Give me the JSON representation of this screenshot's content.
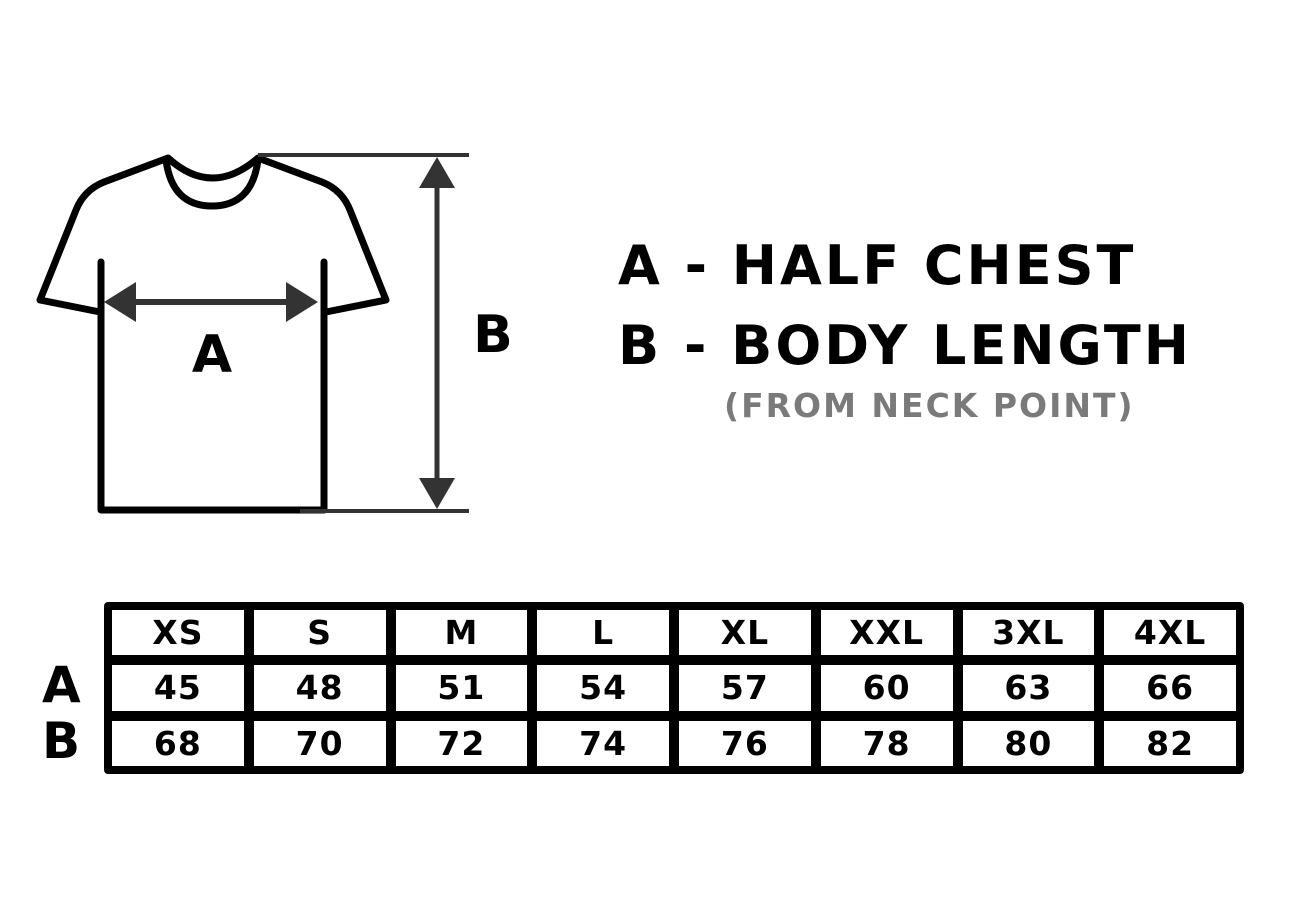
{
  "diagram": {
    "label_a": "A",
    "label_b": "B",
    "outline_color": "#000000",
    "arrow_color": "#333333"
  },
  "legend": {
    "a": "A - HALF CHEST",
    "b": "B - BODY LENGTH",
    "note": "(FROM NECK POINT)",
    "note_color": "#7a7a7a"
  },
  "table": {
    "sizes": [
      "XS",
      "S",
      "M",
      "L",
      "XL",
      "XXL",
      "3XL",
      "4XL"
    ],
    "rows": [
      {
        "label": "A",
        "values": [
          "45",
          "48",
          "51",
          "54",
          "57",
          "60",
          "63",
          "66"
        ]
      },
      {
        "label": "B",
        "values": [
          "68",
          "70",
          "72",
          "74",
          "76",
          "78",
          "80",
          "82"
        ]
      }
    ]
  }
}
